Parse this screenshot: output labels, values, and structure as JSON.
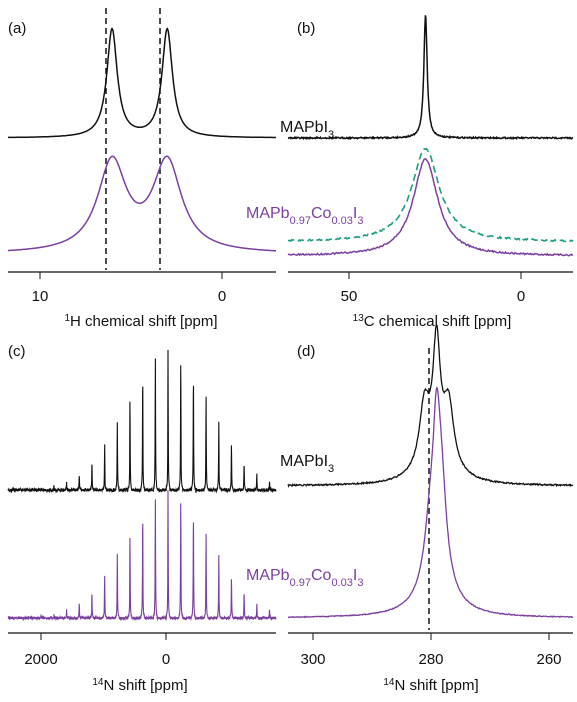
{
  "colors": {
    "black": "#111111",
    "purple": "#7b3fa0",
    "teal": "#1a9e82"
  },
  "chart_data": [
    {
      "panel": "(a)",
      "type": "line",
      "xlabel_sup": "1",
      "xlabel_main": "H chemical shift [ppm]",
      "xlim": [
        13.5,
        -3.5
      ],
      "xticks": [
        "10",
        "0"
      ],
      "xtick_values": [
        10,
        0
      ],
      "dashed_lines_x": [
        6.9,
        3.4
      ],
      "series": [
        {
          "role": "MAPbI3",
          "color": "#111111",
          "peaks": [
            {
              "x": 6.9,
              "amplitude": 1.0,
              "width": 0.4
            },
            {
              "x": 3.4,
              "amplitude": 1.0,
              "width": 0.4
            }
          ]
        },
        {
          "role": "MAPb0.97Co0.03I3",
          "color": "#7b3fa0",
          "peaks": [
            {
              "x": 6.9,
              "amplitude": 0.8,
              "width": 1.1
            },
            {
              "x": 3.4,
              "amplitude": 0.8,
              "width": 1.1
            }
          ]
        }
      ]
    },
    {
      "panel": "(b)",
      "type": "line",
      "xlabel_sup": "13",
      "xlabel_main": "C chemical shift [ppm]",
      "xlim": [
        72,
        -14
      ],
      "xticks": [
        "50",
        "0"
      ],
      "xtick_values": [
        50,
        0
      ],
      "series": [
        {
          "role": "MAPbI3",
          "color": "#111111",
          "peaks": [
            {
              "x": 30.5,
              "amplitude": 1.0,
              "width": 0.6
            }
          ]
        },
        {
          "role": "MAPb0.97Co0.03I3",
          "color": "#7b3fa0",
          "peaks": [
            {
              "x": 30.5,
              "amplitude": 0.95,
              "width": 4.5
            }
          ]
        },
        {
          "role": "dashed",
          "color": "#1a9e82",
          "dashed": true,
          "peaks": [
            {
              "x": 30.5,
              "amplitude": 0.9,
              "width": 5.0
            }
          ]
        }
      ]
    },
    {
      "panel": "(c)",
      "type": "line",
      "xlabel_sup": "14",
      "xlabel_main": "N shift [ppm]",
      "xlim": [
        2400,
        -1150
      ],
      "xticks": [
        "2000",
        "0"
      ],
      "xtick_values": [
        2000,
        0
      ],
      "sideband_spacing": 168,
      "sideband_center": 280,
      "series": [
        {
          "role": "MAPbI3",
          "color": "#111111"
        },
        {
          "role": "MAPb0.97Co0.03I3",
          "color": "#7b3fa0"
        }
      ]
    },
    {
      "panel": "(d)",
      "type": "line",
      "xlabel_sup": "14",
      "xlabel_main": "N shift [ppm]",
      "xlim": [
        304,
        257
      ],
      "xticks": [
        "300",
        "280",
        "260"
      ],
      "xtick_values": [
        300,
        280,
        260
      ],
      "dashed_lines_x": [
        279.5
      ],
      "series": [
        {
          "role": "MAPbI3",
          "color": "#111111",
          "peaks": [
            {
              "x": 279.5,
              "amplitude": 1.0,
              "width": 0.7
            },
            {
              "x": 281.5,
              "amplitude": 0.55,
              "width": 1.0
            },
            {
              "x": 277.5,
              "amplitude": 0.55,
              "width": 1.0
            },
            {
              "x": 279.5,
              "amplitude": 0.25,
              "width": 3.0
            }
          ]
        },
        {
          "role": "MAPb0.97Co0.03I3",
          "color": "#7b3fa0",
          "peaks": [
            {
              "x": 279.5,
              "amplitude": 1.0,
              "width": 0.7
            },
            {
              "x": 278.7,
              "amplitude": 0.75,
              "width": 1.0
            },
            {
              "x": 280.5,
              "amplitude": 0.5,
              "width": 1.2
            },
            {
              "x": 279.5,
              "amplitude": 0.3,
              "width": 3.0
            }
          ]
        }
      ]
    }
  ],
  "labels": {
    "mapbi3": {
      "pre": "MAPbI",
      "sub": "3"
    },
    "mapbco": {
      "a": "MAPb",
      "sub1": "0.97",
      "b": "Co",
      "sub2": "0.03",
      "c": "I",
      "sub3": "3"
    }
  }
}
